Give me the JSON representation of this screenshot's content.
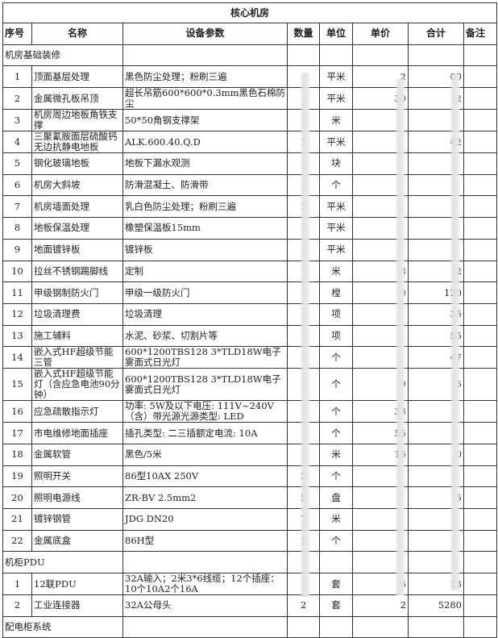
{
  "title": "核心机房",
  "headers": [
    "序号",
    "名称",
    "设备参数",
    "数量",
    "单位",
    "单价",
    "合计",
    "备注"
  ],
  "sections": [
    {
      "name": "机房基础装修",
      "rows": [
        {
          "no": "1",
          "name": "顶面基层处理",
          "spec": "黑色防尘处理；粉刷三遍",
          "qty": "",
          "unit": "平米",
          "price": "2",
          "total": "00",
          "note": ""
        },
        {
          "no": "2",
          "name": "金属微孔板吊顶",
          "spec": "超长吊筋600*600*0.3mm黑色石棉防尘",
          "qty": "",
          "unit": "平米",
          "price": "30",
          "total": "2",
          "note": ""
        },
        {
          "no": "3",
          "name": "机房周边地板角铁支撑",
          "spec": "50*50角钢支撑架",
          "qty": "",
          "unit": "米",
          "price": "",
          "total": "",
          "note": ""
        },
        {
          "no": "4",
          "name": "三聚氰胺面层硫酸钙无边抗静电地板",
          "spec": "ALK.600.40.Q.D",
          "qty": "1",
          "unit": "平米",
          "price": "",
          "total": "42",
          "note": ""
        },
        {
          "no": "5",
          "name": "钢化玻璃地板",
          "spec": "地板下漏水观测",
          "qty": "",
          "unit": "块",
          "price": "",
          "total": "",
          "note": ""
        },
        {
          "no": "6",
          "name": "机房大斜坡",
          "spec": "防滑混凝土、防滑带",
          "qty": "",
          "unit": "个",
          "price": "",
          "total": "",
          "note": ""
        },
        {
          "no": "7",
          "name": "机房墙面处理",
          "spec": "乳白色防尘处理；粉刷三遍",
          "qty": "1",
          "unit": "平米",
          "price": "",
          "total": "",
          "note": ""
        },
        {
          "no": "8",
          "name": "地板保温处理",
          "spec": "橡塑保温板15mm",
          "qty": "",
          "unit": "平米",
          "price": "",
          "total": "",
          "note": ""
        },
        {
          "no": "9",
          "name": "地面镀锌板",
          "spec": "镀锌板",
          "qty": "",
          "unit": "平米",
          "price": "",
          "total": "",
          "note": ""
        },
        {
          "no": "10",
          "name": "拉丝不锈钢踢脚线",
          "spec": "定制",
          "qty": "",
          "unit": "米",
          "price": "8",
          "total": "2",
          "note": ""
        },
        {
          "no": "11",
          "name": "甲级钢制防火门",
          "spec": "甲级一级防火门",
          "qty": "",
          "unit": "樘",
          "price": "0",
          "total": "120",
          "note": ""
        },
        {
          "no": "12",
          "name": "垃圾清理费",
          "spec": "垃圾清理",
          "qty": "",
          "unit": "项",
          "price": "",
          "total": "35",
          "note": ""
        },
        {
          "no": "13",
          "name": "施工辅料",
          "spec": "水泥、砂浆、切割片等",
          "qty": "",
          "unit": "项",
          "price": "",
          "total": "55",
          "note": ""
        },
        {
          "no": "14",
          "name": "嵌入式HF超级节能 三管",
          "spec": "600*1200TBS128 3*TLD18W电子雾面式日光灯",
          "qty": "",
          "unit": "个",
          "price": "",
          "total": "47",
          "note": ""
        },
        {
          "no": "15",
          "name": "嵌入式HF超级节能灯（含应急电池90分钟）",
          "spec": "600*1200TBS128 3*TLD18W电子雾面式日光灯",
          "qty": "",
          "unit": "个",
          "price": "9",
          "total": "5",
          "note": ""
        },
        {
          "no": "16",
          "name": "应急疏散指示灯",
          "spec": "功率: 5W及以下电压: 111V~240V（含）带光源光源类型: LED",
          "qty": "",
          "unit": "个",
          "price": "33",
          "total": "",
          "note": ""
        },
        {
          "no": "17",
          "name": "市电维修地面插座",
          "spec": "插孔类型: 二三插额定电流: 10A",
          "qty": "",
          "unit": "个",
          "price": "55",
          "total": "",
          "note": ""
        },
        {
          "no": "18",
          "name": "金属软管",
          "spec": "  黑色/5米",
          "qty": "",
          "unit": "米",
          "price": "15",
          "total": "0",
          "note": ""
        },
        {
          "no": "19",
          "name": "照明开关",
          "spec": "86型10AX 250V",
          "qty": "2",
          "unit": "个",
          "price": "",
          "total": "",
          "note": ""
        },
        {
          "no": "20",
          "name": "照明电源线",
          "spec": "ZR-BV 2.5mm2",
          "qty": "5",
          "unit": "盘",
          "price": "",
          "total": "5",
          "note": ""
        },
        {
          "no": "21",
          "name": "镀锌钢管",
          "spec": "  JDG DN20",
          "qty": "7",
          "unit": "米",
          "price": "",
          "total": "",
          "note": ""
        },
        {
          "no": "22",
          "name": "金属底盒",
          "spec": "86H型",
          "qty": "1",
          "unit": "个",
          "price": "",
          "total": "",
          "note": ""
        }
      ]
    },
    {
      "name": "机柜PDU",
      "rows": [
        {
          "no": "1",
          "name": "12联PDU",
          "spec": "32A输入；2米3*6线缆；12个插座：10个10A2个16A",
          "qty": "",
          "unit": "套",
          "price": "6",
          "total": "13",
          "note": ""
        },
        {
          "no": "2",
          "name": "工业连接器",
          "spec": "32A公母头",
          "qty": "2",
          "unit": "套",
          "price": "2",
          "total": "5280",
          "note": ""
        }
      ]
    },
    {
      "name": "配电柜系统",
      "rows": []
    }
  ]
}
